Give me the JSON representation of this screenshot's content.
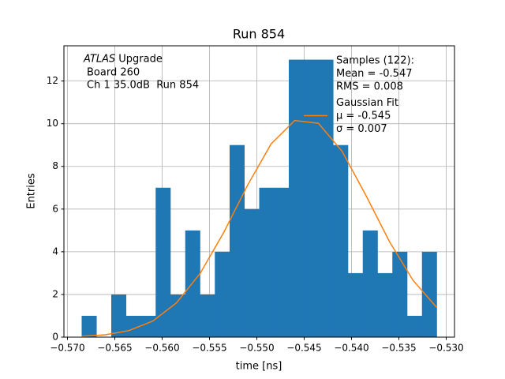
{
  "chart_data": {
    "type": "histogram",
    "title": "Run 854",
    "x_label": "time [ns]",
    "y_label": "Entries",
    "atlas_label": "ATLAS",
    "annotation_lines": [
      "Upgrade",
      "Board 260",
      "Ch 1 35.0dB  Run 854"
    ],
    "xlim": [
      -0.570375,
      -0.529125
    ],
    "ylim": [
      0,
      13.65
    ],
    "xticks": [
      {
        "value": -0.57,
        "label": "−0.570"
      },
      {
        "value": -0.565,
        "label": "−0.565"
      },
      {
        "value": -0.56,
        "label": "−0.560"
      },
      {
        "value": -0.555,
        "label": "−0.555"
      },
      {
        "value": -0.55,
        "label": "−0.550"
      },
      {
        "value": -0.545,
        "label": "−0.545"
      },
      {
        "value": -0.54,
        "label": "−0.540"
      },
      {
        "value": -0.535,
        "label": "−0.535"
      },
      {
        "value": -0.53,
        "label": "−0.530"
      }
    ],
    "yticks": [
      0,
      2,
      4,
      6,
      8,
      10,
      12
    ],
    "grid": true,
    "series": [
      {
        "type": "histogram",
        "name": "Samples (122):",
        "stats": [
          "Mean = -0.547",
          "RMS = 0.008"
        ],
        "color": "#1f77b4",
        "bins": [
          -0.5685,
          -0.5669375,
          -0.565375,
          -0.5638125,
          -0.56225,
          -0.5606875,
          -0.559125,
          -0.5575625,
          -0.556,
          -0.5544375,
          -0.552875,
          -0.5513125,
          -0.54975,
          -0.5481875,
          -0.546625,
          -0.5450625,
          -0.5435,
          -0.5419375,
          -0.540375,
          -0.5388125,
          -0.53725,
          -0.5356875,
          -0.534125,
          -0.5325625,
          -0.531
        ],
        "values": [
          1,
          0,
          2,
          1,
          1,
          7,
          2,
          5,
          2,
          4,
          9,
          6,
          7,
          7,
          13,
          13,
          13,
          9,
          3,
          5,
          3,
          4,
          1,
          4
        ]
      },
      {
        "type": "line",
        "name": "Gaussian Fit",
        "stats": [
          "μ = -0.545",
          "σ = 0.007"
        ],
        "color": "#ff7f0e",
        "x": [
          -0.5685,
          -0.566,
          -0.5635,
          -0.561,
          -0.5585,
          -0.556,
          -0.5535,
          -0.551,
          -0.5485,
          -0.546,
          -0.5435,
          -0.541,
          -0.5385,
          -0.536,
          -0.5335,
          -0.531
        ],
        "values": [
          0.04,
          0.11,
          0.31,
          0.75,
          1.6,
          2.98,
          4.9,
          7.1,
          9.05,
          10.15,
          10.02,
          8.71,
          6.66,
          4.48,
          2.66,
          1.39
        ]
      }
    ]
  }
}
